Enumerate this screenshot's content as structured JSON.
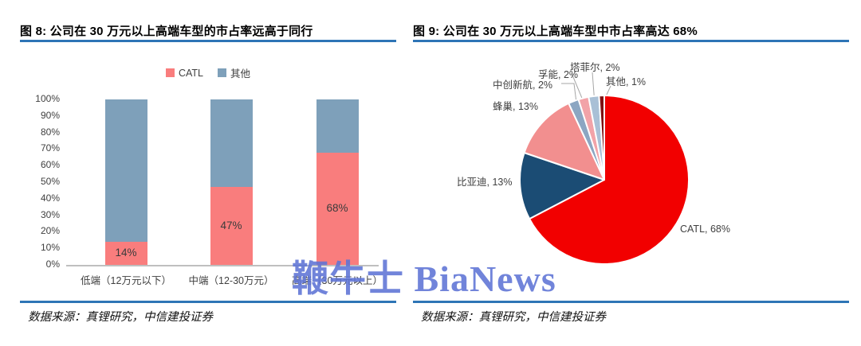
{
  "watermark": "鞭牛士 BiaNews",
  "figure8": {
    "title": "图 8: 公司在 30 万元以上高端车型的市占率远高于同行",
    "source": "数据来源：真锂研究，中信建投证券"
  },
  "figure9": {
    "title": "图 9: 公司在 30 万元以上高端车型中市占率高达 68%",
    "source": "数据来源：真锂研究，中信建投证券"
  },
  "colors": {
    "accent_rule": "#2e75b6",
    "watermark_blue": "#5e74d6",
    "axis_gray": "#bfbfbf",
    "bar_catl_pink": "#f97d7d",
    "bar_other_blue": "#7ea0ba"
  },
  "chart_data": [
    {
      "type": "bar",
      "stacked": true,
      "title": "图 8: 公司在 30 万元以上高端车型的市占率远高于同行",
      "categories": [
        "低端（12万元以下）",
        "中端（12-30万元）",
        "高端（30万元以上）"
      ],
      "series": [
        {
          "name": "CATL",
          "color": "#f97d7d",
          "values": [
            14,
            47,
            68
          ],
          "labels": [
            "14%",
            "47%",
            "68%"
          ]
        },
        {
          "name": "其他",
          "color": "#7ea0ba",
          "values": [
            86,
            53,
            32
          ],
          "labels": [
            "",
            "",
            ""
          ]
        }
      ],
      "ylabel": "",
      "xlabel": "",
      "ylim": [
        0,
        100
      ],
      "y_ticks": [
        "0%",
        "10%",
        "20%",
        "30%",
        "40%",
        "50%",
        "60%",
        "70%",
        "80%",
        "90%",
        "100%"
      ],
      "legend_position": "top",
      "grid": false
    },
    {
      "type": "pie",
      "title": "图 9: 公司在 30 万元以上高端车型中市占率高达 68%",
      "start_at": "top",
      "direction": "clockwise",
      "slices": [
        {
          "name": "CATL",
          "value": 68,
          "label": "CATL, 68%",
          "color": "#f20000"
        },
        {
          "name": "比亚迪",
          "value": 13,
          "label": "比亚迪, 13%",
          "color": "#1b4c74"
        },
        {
          "name": "蜂巢",
          "value": 13,
          "label": "蜂巢, 13%",
          "color": "#f28f8f"
        },
        {
          "name": "中创新航",
          "value": 2,
          "label": "中创新航, 2%",
          "color": "#8ca6c2"
        },
        {
          "name": "孚能",
          "value": 2,
          "label": "孚能, 2%",
          "color": "#f2a3a8"
        },
        {
          "name": "塔菲尔",
          "value": 2,
          "label": "塔菲尔, 2%",
          "color": "#a9c0d6"
        },
        {
          "name": "其他",
          "value": 1,
          "label": "其他, 1%",
          "color": "#7e1012"
        }
      ]
    }
  ]
}
